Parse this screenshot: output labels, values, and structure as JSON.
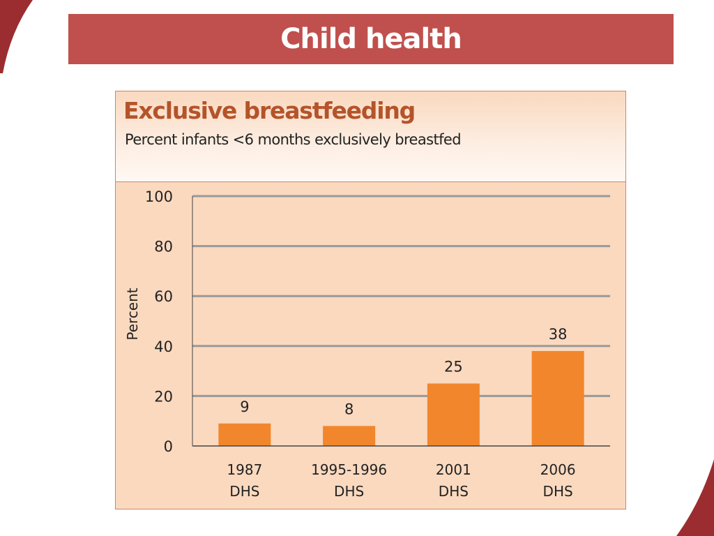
{
  "slide": {
    "title": "Child health",
    "colors": {
      "title_bar": "#c0504d",
      "decoration": "#9b2d30",
      "panel_background": "#fad9bf",
      "chart_title": "#b5532a",
      "bar": "#f2862c",
      "gridline": "#999999"
    }
  },
  "chart_data": {
    "type": "bar",
    "title": "Exclusive breastfeeding",
    "subtitle": "Percent infants <6 months exclusively breastfed",
    "xlabel": "",
    "ylabel": "Percent",
    "ylim": [
      0,
      100
    ],
    "yticks": [
      0,
      20,
      40,
      60,
      80,
      100
    ],
    "grid": true,
    "legend": "none",
    "categories": [
      [
        "1987",
        "DHS"
      ],
      [
        "1995-1996",
        "DHS"
      ],
      [
        "2001",
        "DHS"
      ],
      [
        "2006",
        "DHS"
      ]
    ],
    "values": [
      9,
      8,
      25,
      38
    ],
    "data_labels": [
      "9",
      "8",
      "25",
      "38"
    ]
  }
}
